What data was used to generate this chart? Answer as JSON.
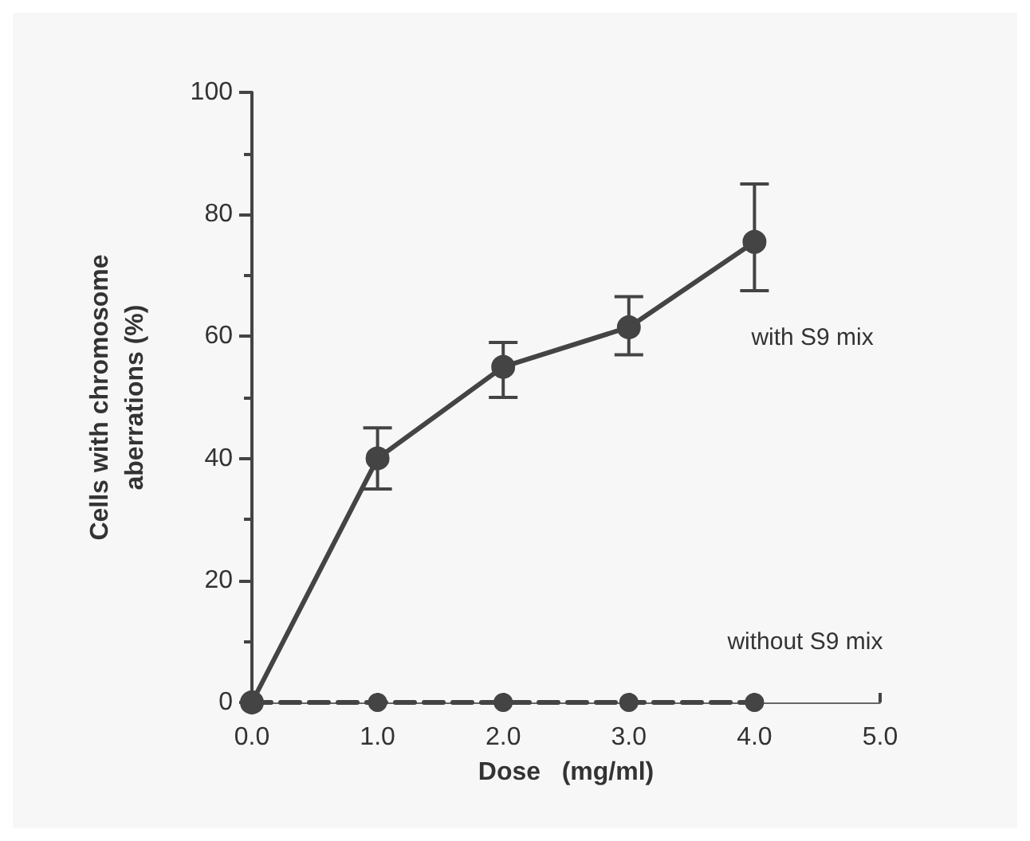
{
  "chart_data": {
    "type": "line",
    "xlabel": "Dose   (mg/ml)",
    "ylabel": "Cells with chromosome\naberrations (%)",
    "x": [
      0,
      1,
      2,
      3,
      4
    ],
    "xlim": [
      0,
      5
    ],
    "xticks": [
      {
        "value": 0,
        "label": "0.0"
      },
      {
        "value": 1,
        "label": "1.0"
      },
      {
        "value": 2,
        "label": "2.0"
      },
      {
        "value": 3,
        "label": "3.0"
      },
      {
        "value": 4,
        "label": "4.0"
      },
      {
        "value": 5,
        "label": "5.0"
      }
    ],
    "ylim": [
      0,
      100
    ],
    "yticks": [
      0,
      20,
      40,
      60,
      80,
      100
    ],
    "grid": false,
    "legend": false,
    "marker": "circle",
    "series": [
      {
        "name": "with S9 mix",
        "color": "#444444",
        "values": [
          0,
          40,
          55,
          61.5,
          75.5
        ],
        "errors": [
          null,
          [
            35,
            45
          ],
          [
            50,
            59
          ],
          [
            57,
            66.5
          ],
          [
            67.5,
            85
          ]
        ],
        "line_style": "solid"
      },
      {
        "name": "without S9 mix",
        "color": "#444444",
        "values": [
          0,
          0,
          0,
          0,
          0
        ],
        "line_style": "dashed"
      }
    ]
  }
}
